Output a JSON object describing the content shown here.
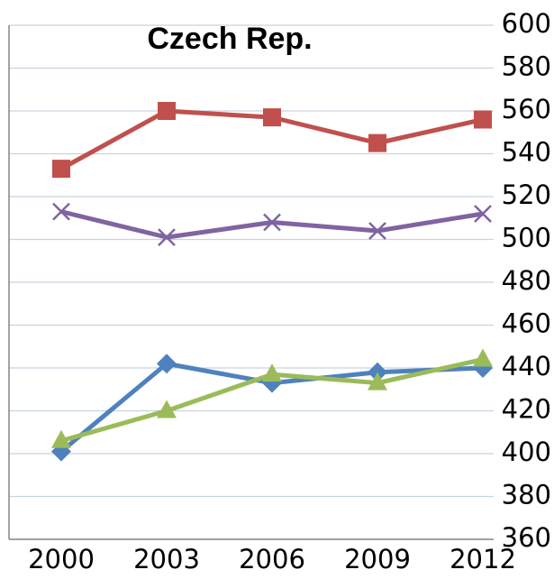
{
  "chart_data": {
    "type": "line",
    "title": "Czech Rep.",
    "categories": [
      "2000",
      "2003",
      "2006",
      "2009",
      "2012"
    ],
    "series": [
      {
        "color": "#4f81bd",
        "marker": "diamond",
        "values": [
          401,
          442,
          433,
          438,
          440
        ]
      },
      {
        "color": "#c0504d",
        "marker": "square",
        "values": [
          533,
          560,
          557,
          545,
          556
        ]
      },
      {
        "color": "#8064a2",
        "marker": "x",
        "values": [
          513,
          501,
          508,
          504,
          512
        ]
      },
      {
        "color": "#9bbb59",
        "marker": "triangle",
        "values": [
          406,
          420,
          437,
          433,
          444
        ]
      }
    ],
    "ylim": [
      360,
      600
    ],
    "yticks": [
      360,
      380,
      400,
      420,
      440,
      460,
      480,
      500,
      520,
      540,
      560,
      580,
      600
    ],
    "grid": true,
    "y_axis_side": "right"
  }
}
